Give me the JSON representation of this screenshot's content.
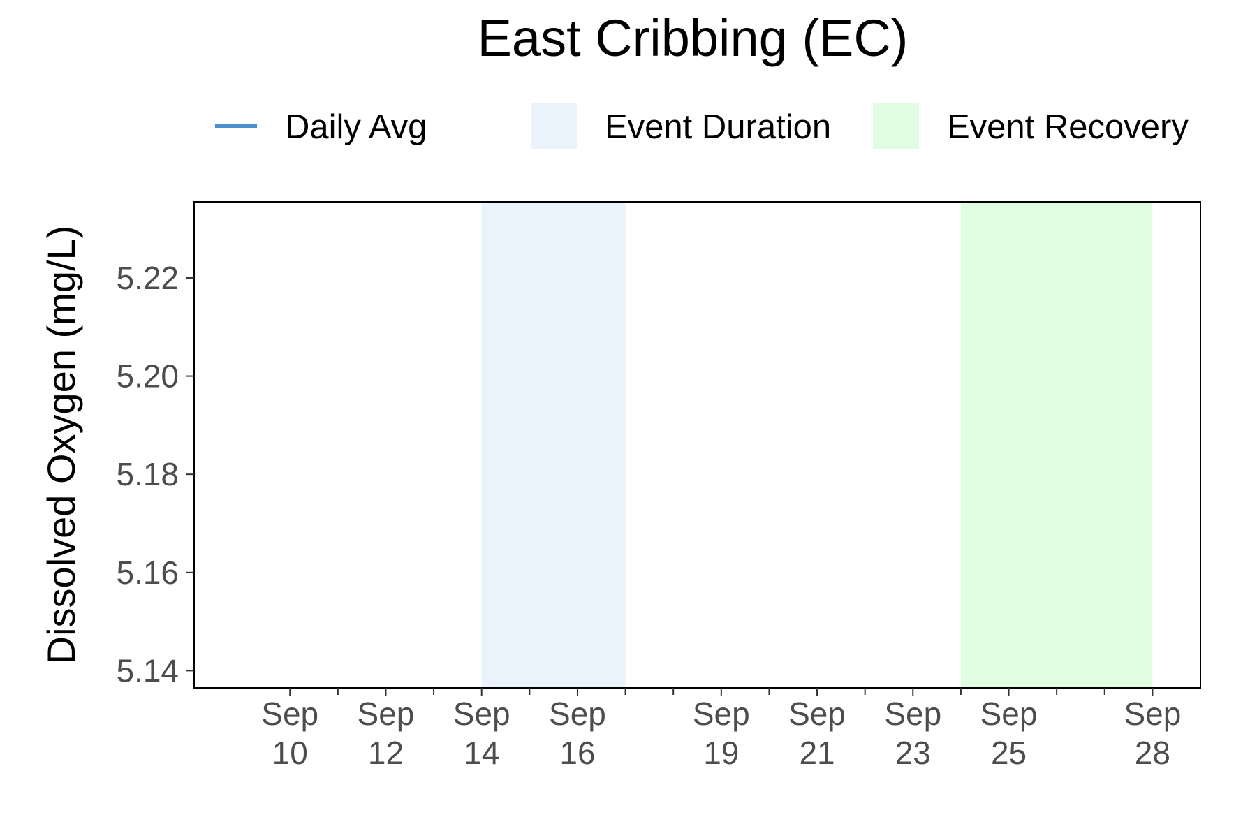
{
  "chart_data": {
    "type": "line",
    "title": "East Cribbing (EC)",
    "xlabel": "",
    "ylabel": "Dissolved Oxygen (mg/L)",
    "x_type": "date",
    "xlim": [
      "Sep 8",
      "Sep 29"
    ],
    "ylim": [
      5.1365,
      5.2355
    ],
    "y_ticks": [
      5.14,
      5.16,
      5.18,
      5.2,
      5.22
    ],
    "y_tick_labels": [
      "5.14",
      "5.16",
      "5.18",
      "5.20",
      "5.22"
    ],
    "x_ticks": [
      {
        "date": "Sep 10",
        "label": [
          "Sep",
          "10"
        ]
      },
      {
        "date": "Sep 12",
        "label": [
          "Sep",
          "12"
        ]
      },
      {
        "date": "Sep 14",
        "label": [
          "Sep",
          "14"
        ]
      },
      {
        "date": "Sep 16",
        "label": [
          "Sep",
          "16"
        ]
      },
      {
        "date": "Sep 19",
        "label": [
          "Sep",
          "19"
        ]
      },
      {
        "date": "Sep 21",
        "label": [
          "Sep",
          "21"
        ]
      },
      {
        "date": "Sep 23",
        "label": [
          "Sep",
          "23"
        ]
      },
      {
        "date": "Sep 25",
        "label": [
          "Sep",
          "25"
        ]
      },
      {
        "date": "Sep 28",
        "label": [
          "Sep",
          "28"
        ]
      }
    ],
    "x_minor_ticks": [
      "Sep 11",
      "Sep 13",
      "Sep 15",
      "Sep 17",
      "Sep 18",
      "Sep 20",
      "Sep 22",
      "Sep 24",
      "Sep 26",
      "Sep 27"
    ],
    "series": [
      {
        "name": "Daily Avg",
        "color": "#4a90cf",
        "points": []
      }
    ],
    "shaded_regions": [
      {
        "name": "Event Duration",
        "start": "Sep 14",
        "end": "Sep 17",
        "color": "#eaf3fb"
      },
      {
        "name": "Event Recovery",
        "start": "Sep 24",
        "end": "Sep 28",
        "color": "#e1fde1"
      }
    ],
    "legend": {
      "position": "top",
      "entries": [
        {
          "label": "Daily Avg",
          "kind": "line",
          "color": "#4a90cf"
        },
        {
          "label": "Event Duration",
          "kind": "fill",
          "color": "#eaf3fb"
        },
        {
          "label": "Event Recovery",
          "kind": "fill",
          "color": "#e1fde1"
        }
      ]
    },
    "grid": false
  }
}
